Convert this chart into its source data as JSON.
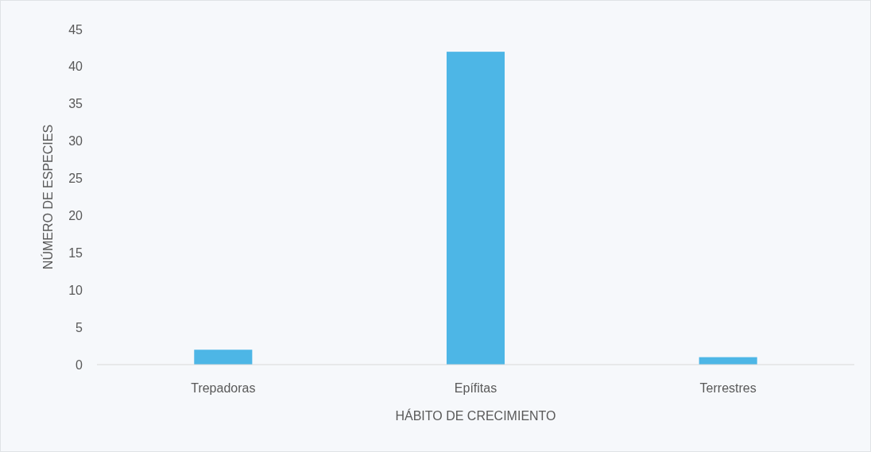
{
  "chart_data": {
    "type": "bar",
    "xlabel": "HÁBITO DE CRECIMIENTO",
    "ylabel": "NÚMERO DE ESPECIES",
    "categories": [
      "Trepadoras",
      "Epífitas",
      "Terrestres"
    ],
    "values": [
      2,
      42,
      1
    ],
    "color": "#4db6e6",
    "ylim": [
      0,
      45
    ],
    "yticks": [
      0,
      5,
      10,
      15,
      20,
      25,
      30,
      35,
      40,
      45
    ],
    "grid": false
  }
}
